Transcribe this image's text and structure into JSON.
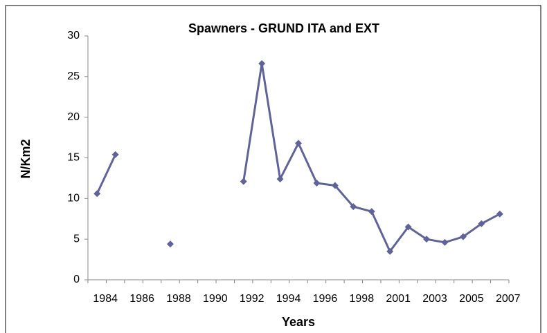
{
  "chart_data": {
    "type": "line",
    "title": "Spawners - GRUND ITA and EXT",
    "xlabel": "Years",
    "ylabel": "N/Km2",
    "categories": [
      "1984",
      null,
      "1986",
      null,
      "1988",
      null,
      "1990",
      null,
      "1992",
      null,
      "1994",
      null,
      "1996",
      null,
      "1998",
      null,
      "2001",
      null,
      "2003",
      null,
      "2005",
      null,
      "2007"
    ],
    "values": [
      10.6,
      15.4,
      null,
      null,
      4.4,
      null,
      null,
      null,
      12.1,
      26.6,
      12.4,
      16.8,
      11.9,
      11.6,
      9.0,
      8.4,
      3.5,
      6.5,
      5.0,
      4.6,
      5.3,
      6.9,
      8.1
    ],
    "color": "#5f6399",
    "marker": "diamond",
    "ylim": [
      0,
      30
    ],
    "yticks": [
      0,
      5,
      10,
      15,
      20,
      25,
      30
    ]
  }
}
